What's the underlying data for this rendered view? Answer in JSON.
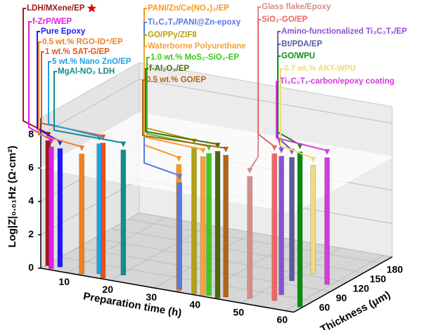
{
  "chart_data": {
    "type": "bar3d",
    "xlabel": "Preparation time (h)",
    "ylabel": "Thickness (μm)",
    "zlabel": "Log|Z|₀.₀₁Hz (Ω·cm²)",
    "xlim": [
      4,
      62
    ],
    "xticks": [
      10,
      20,
      30,
      40,
      50,
      60
    ],
    "ylim": [
      25,
      200
    ],
    "yticks": [
      60,
      90,
      120,
      150,
      180
    ],
    "zlim": [
      0,
      9
    ],
    "zticks": [
      0,
      2,
      4,
      6,
      8
    ],
    "reference_plane": 6,
    "grid": true,
    "series": [
      {
        "name": "LDH/MXene/EP",
        "color": "#a01818",
        "x": [
          4.5
        ],
        "y": [
          34
        ],
        "z": [
          7.5
        ]
      },
      {
        "name": "f-ZrP/WEP",
        "color": "#e020e0",
        "x": [
          6
        ],
        "y": [
          28
        ],
        "z": [
          7.3
        ]
      },
      {
        "name": "Pure Epoxy",
        "color": "#1a1aff",
        "x": [
          7
        ],
        "y": [
          36
        ],
        "z": [
          7.1
        ]
      },
      {
        "name": "0.5 wt.% RGO-ID⁺/EP",
        "color": "#f08020",
        "x": [
          13
        ],
        "y": [
          28
        ],
        "z": [
          7.2
        ]
      },
      {
        "name": "1 wt.% SAT-G/EP",
        "color": "#e8501a",
        "x": [
          18
        ],
        "y": [
          27
        ],
        "z": [
          8.1
        ]
      },
      {
        "name": "5 wt.% Nano ZnO/EP",
        "color": "#1ea0e6",
        "x": [
          16
        ],
        "y": [
          36
        ],
        "z": [
          7.8
        ]
      },
      {
        "name": "MgAl-NO₂ LDH",
        "color": "#148c8c",
        "x": [
          20.6
        ],
        "y": [
          43
        ],
        "z": [
          7.5
        ]
      },
      {
        "name": "PANI/Zn/Ce(NO₃)₃/EP",
        "color": "#f59a1e",
        "x": [
          35.4
        ],
        "y": [
          27
        ],
        "z": [
          7.6
        ]
      },
      {
        "name": "Ti₃C₂Tₓ/PANI@Zn-epoxy",
        "color": "#5a78e6",
        "x": [
          34.9
        ],
        "y": [
          32
        ],
        "z": [
          6.4
        ]
      },
      {
        "name": "GO/PPy/ZIF8",
        "color": "#b4a014",
        "x": [
          38.9
        ],
        "y": [
          27
        ],
        "z": [
          8.8
        ]
      },
      {
        "name": "Waterborne Polyurethane",
        "color": "#f5a23c",
        "x": [
          40.8
        ],
        "y": [
          28
        ],
        "z": [
          8.3
        ]
      },
      {
        "name": "1.0 wt.% MoS₂-SiO₂-EP",
        "color": "#3cc81e",
        "x": [
          41.9
        ],
        "y": [
          30
        ],
        "z": [
          8.5
        ]
      },
      {
        "name": "f-Al₂O₃/EP",
        "color": "#4a6a10",
        "x": [
          44.3
        ],
        "y": [
          27
        ],
        "z": [
          8.8
        ]
      },
      {
        "name": "0.5 wt.% GO/EP",
        "color": "#b46414",
        "x": [
          45.4
        ],
        "y": [
          33
        ],
        "z": [
          8.5
        ]
      },
      {
        "name": "Glass flake/Epoxy",
        "color": "#d88c8c",
        "x": [
          50
        ],
        "y": [
          40
        ],
        "z": [
          7.3
        ]
      },
      {
        "name": "SiO₂-GO/EP",
        "color": "#f06464",
        "x": [
          55
        ],
        "y": [
          45
        ],
        "z": [
          8.8
        ]
      },
      {
        "name": "Amino-functionalized Ti₃C₂Tₓ/EP",
        "color": "#8c50d8",
        "x": [
          54.4
        ],
        "y": [
          62
        ],
        "z": [
          8.3
        ]
      },
      {
        "name": "Bt/PDA/EP",
        "color": "#5a5aa0",
        "x": [
          51.9
        ],
        "y": [
          100
        ],
        "z": [
          7.4
        ]
      },
      {
        "name": "GO/WPU",
        "color": "#0a8c14",
        "x": [
          61.5
        ],
        "y": [
          40
        ],
        "z": [
          9.3
        ]
      },
      {
        "name": "0.7 wt.% AKT-WPU",
        "color": "#f0dc78",
        "x": [
          53.4
        ],
        "y": [
          126
        ],
        "z": [
          6.5
        ]
      },
      {
        "name": "Ti₃C₂Tₓ-carbon/epoxy coating",
        "color": "#d23cdc",
        "x": [
          59.2
        ],
        "y": [
          106
        ],
        "z": [
          7.6
        ]
      }
    ]
  }
}
